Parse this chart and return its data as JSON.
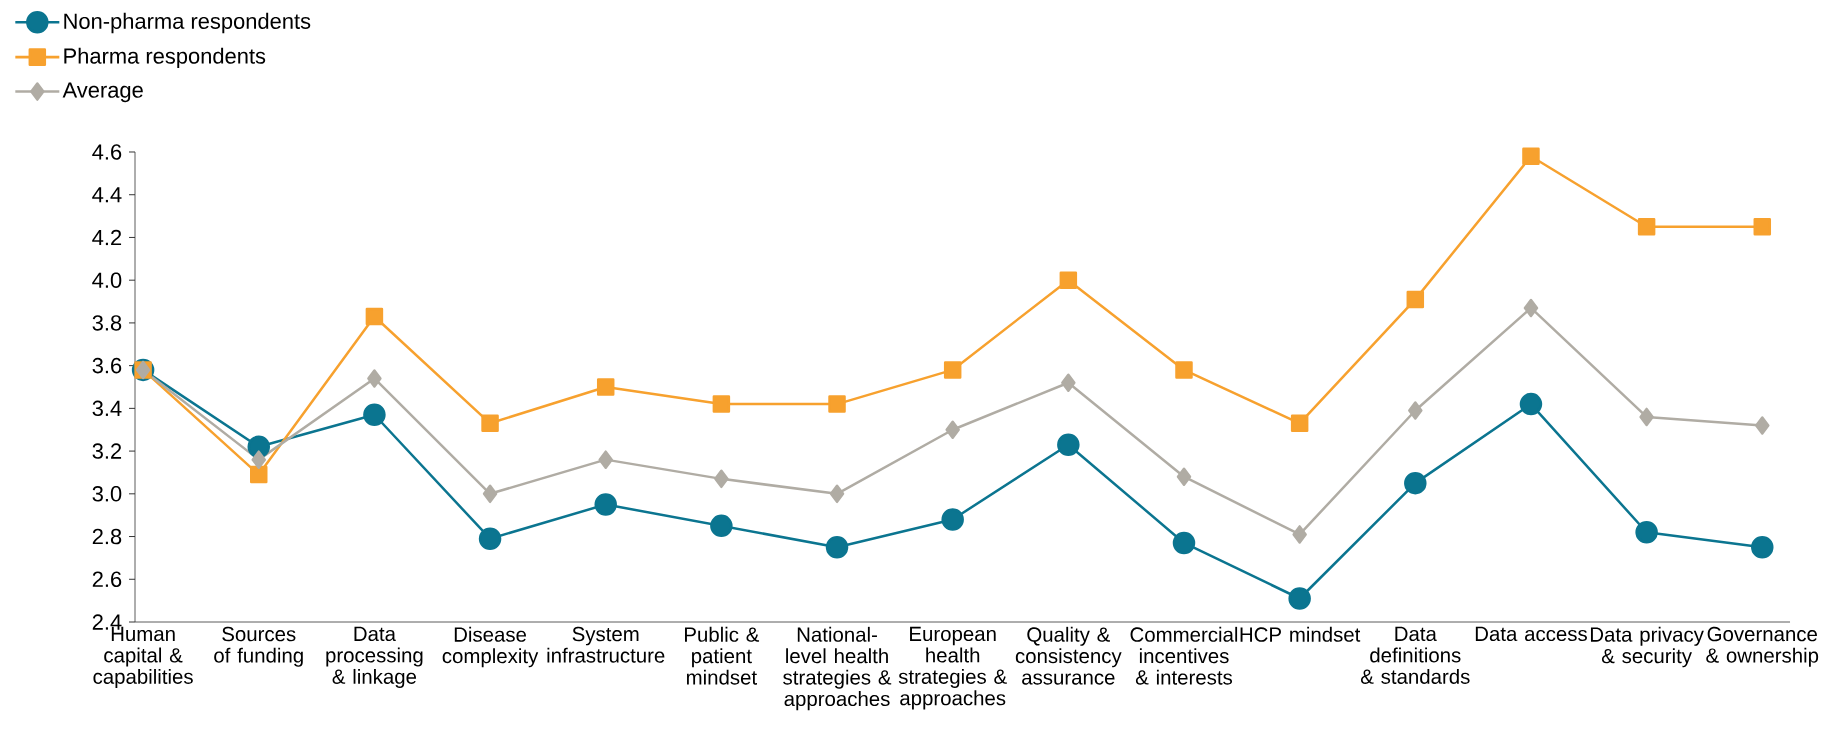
{
  "chart_data": {
    "type": "line",
    "categories": [
      "Human capital & capabilities",
      "Sources of funding",
      "Data processing & linkage",
      "Disease complexity",
      "System infrastructure",
      "Public & patient mindset",
      "National-level health strategies & approaches",
      "European health strategies & approaches",
      "Quality & consistency assurance",
      "Commercial incentives & interests",
      "HCP mindset",
      "Data definitions & standards",
      "Data access",
      "Data privacy & security",
      "Governance & ownership"
    ],
    "series": [
      {
        "name": "Non-pharma respondents",
        "color": "#0b7590",
        "marker": "circle",
        "values": [
          3.58,
          3.22,
          3.37,
          2.79,
          2.95,
          2.85,
          2.75,
          2.88,
          3.23,
          2.77,
          2.51,
          3.05,
          3.42,
          2.82,
          2.75
        ]
      },
      {
        "name": "Pharma respondents",
        "color": "#f7a12e",
        "marker": "square",
        "values": [
          3.58,
          3.09,
          3.83,
          3.33,
          3.5,
          3.42,
          3.42,
          3.58,
          4.0,
          3.58,
          3.33,
          3.91,
          4.58,
          4.25,
          4.25
        ]
      },
      {
        "name": "Average",
        "color": "#b0aca4",
        "marker": "diamond",
        "values": [
          3.58,
          3.16,
          3.54,
          3.0,
          3.16,
          3.07,
          3.0,
          3.3,
          3.52,
          3.08,
          2.81,
          3.39,
          3.87,
          3.36,
          3.32
        ]
      }
    ],
    "ylim": [
      2.4,
      4.6
    ],
    "yticks": [
      {
        "value": 2.4,
        "label": "2.4"
      },
      {
        "value": 2.6,
        "label": "2.6"
      },
      {
        "value": 2.8,
        "label": "2.8"
      },
      {
        "value": 3.0,
        "label": "3.0"
      },
      {
        "value": 3.2,
        "label": "3.2"
      },
      {
        "value": 3.4,
        "label": "3.4"
      },
      {
        "value": 3.6,
        "label": "3.6"
      },
      {
        "value": 3.8,
        "label": "3.8"
      },
      {
        "value": 4.0,
        "label": "4.0"
      },
      {
        "value": 4.2,
        "label": "4.2"
      },
      {
        "value": 4.4,
        "label": "4.4"
      },
      {
        "value": 4.6,
        "label": "4.6"
      }
    ],
    "legend": "top left",
    "grid": false
  }
}
